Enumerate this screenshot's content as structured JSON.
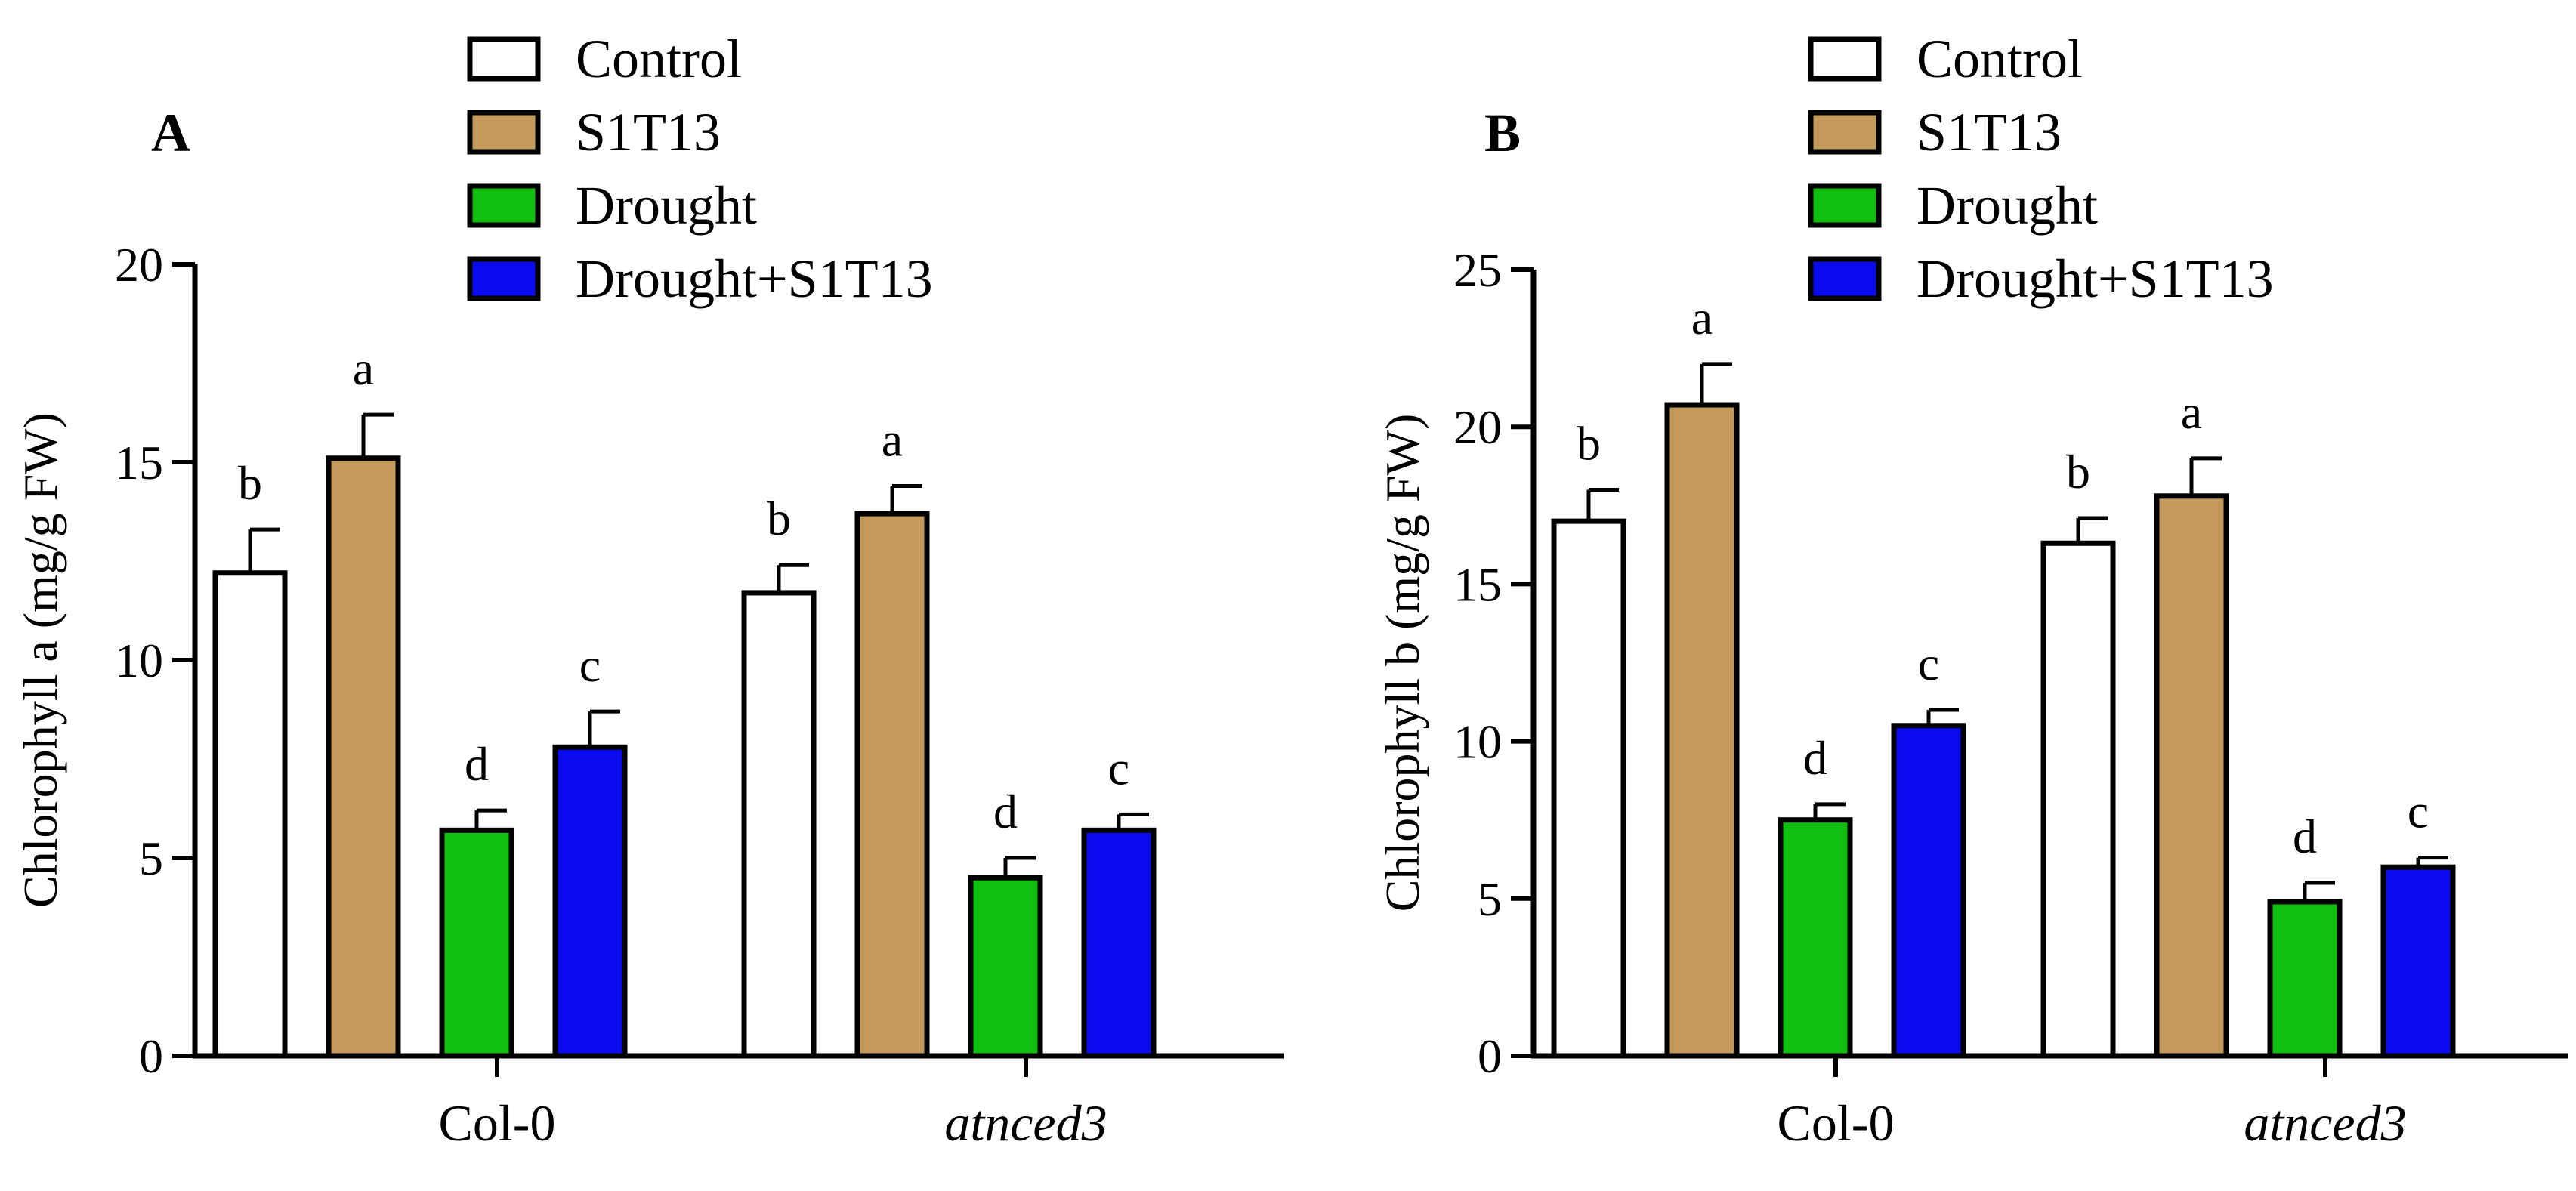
{
  "chart_data": [
    {
      "type": "bar",
      "panel": "A",
      "ylabel": "Chlorophyll a (mg/g FW)",
      "ylim": [
        0,
        20
      ],
      "yticks": [
        0,
        5,
        10,
        15,
        20
      ],
      "categories": [
        "Col-0",
        "atnced3"
      ],
      "category_italic": [
        false,
        true
      ],
      "series": [
        {
          "name": "Control",
          "values": [
            12.2,
            11.7
          ],
          "errors": [
            1.1,
            0.7
          ],
          "letters": [
            "b",
            "b"
          ]
        },
        {
          "name": "S1T13",
          "values": [
            15.1,
            13.7
          ],
          "errors": [
            1.1,
            0.7
          ],
          "letters": [
            "a",
            "a"
          ]
        },
        {
          "name": "Drought",
          "values": [
            5.7,
            4.5
          ],
          "errors": [
            0.5,
            0.5
          ],
          "letters": [
            "d",
            "d"
          ]
        },
        {
          "name": "Drought+S1T13",
          "values": [
            7.8,
            5.7
          ],
          "errors": [
            0.9,
            0.4
          ],
          "letters": [
            "c",
            "c"
          ]
        }
      ]
    },
    {
      "type": "bar",
      "panel": "B",
      "ylabel": "Chlorophyll b (mg/g FW)",
      "ylim": [
        0,
        25
      ],
      "yticks": [
        0,
        5,
        10,
        15,
        20,
        25
      ],
      "categories": [
        "Col-0",
        "atnced3"
      ],
      "category_italic": [
        false,
        true
      ],
      "series": [
        {
          "name": "Control",
          "values": [
            17.0,
            16.3
          ],
          "errors": [
            1.0,
            0.8
          ],
          "letters": [
            "b",
            "b"
          ]
        },
        {
          "name": "S1T13",
          "values": [
            20.7,
            17.8
          ],
          "errors": [
            1.3,
            1.2
          ],
          "letters": [
            "a",
            "a"
          ]
        },
        {
          "name": "Drought",
          "values": [
            7.5,
            4.9
          ],
          "errors": [
            0.5,
            0.6
          ],
          "letters": [
            "d",
            "d"
          ]
        },
        {
          "name": "Drought+S1T13",
          "values": [
            10.5,
            6.0
          ],
          "errors": [
            0.5,
            0.3
          ],
          "letters": [
            "c",
            "c"
          ]
        }
      ]
    }
  ],
  "legend": [
    "Control",
    "S1T13",
    "Drought",
    "Drought+S1T13"
  ],
  "colors": {
    "Control": "#ffffff",
    "S1T13": "#c49a5a",
    "Drought": "#10bf10",
    "Drought+S1T13": "#0a0af0",
    "stroke": "#000000"
  }
}
